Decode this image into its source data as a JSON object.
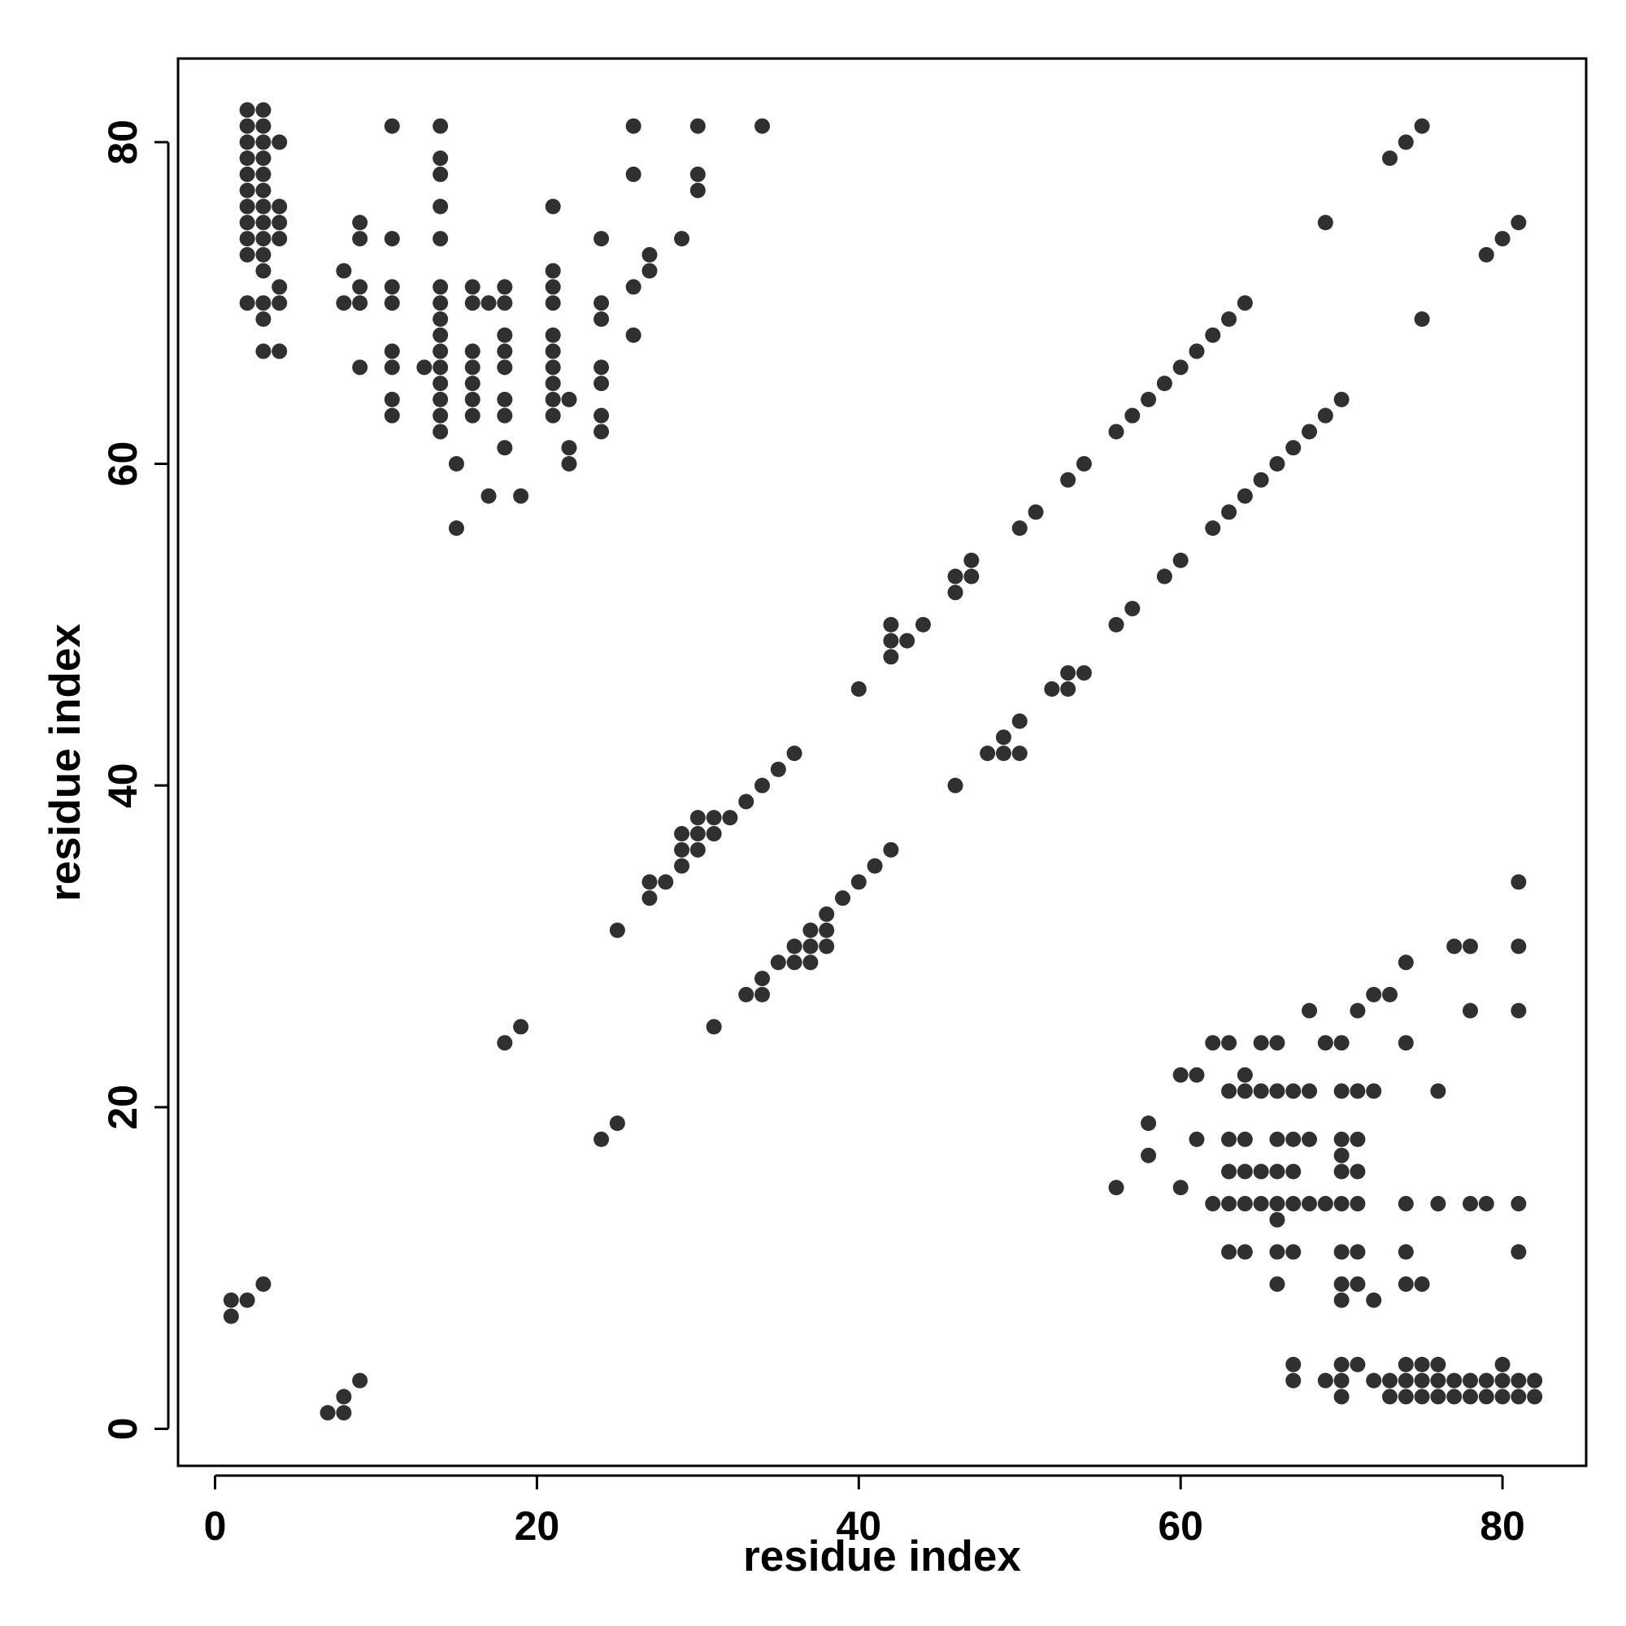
{
  "chart_data": {
    "type": "scatter",
    "title": "",
    "xlabel": "residue index",
    "ylabel": "residue index",
    "xlim": [
      -2.3,
      85.2
    ],
    "ylim": [
      -2.3,
      85.2
    ],
    "xticks": [
      0,
      20,
      40,
      60,
      80
    ],
    "yticks": [
      0,
      20,
      40,
      60,
      80
    ],
    "grid": false,
    "legend": "none",
    "point_color": "#1a1a1a",
    "series": [
      {
        "points": [
          [
            2,
            82
          ],
          [
            3,
            82
          ],
          [
            2,
            81
          ],
          [
            3,
            81
          ],
          [
            2,
            80
          ],
          [
            3,
            80
          ],
          [
            4,
            80
          ],
          [
            2,
            79
          ],
          [
            3,
            79
          ],
          [
            2,
            78
          ],
          [
            3,
            78
          ],
          [
            2,
            77
          ],
          [
            3,
            77
          ],
          [
            2,
            76
          ],
          [
            3,
            76
          ],
          [
            4,
            76
          ],
          [
            2,
            75
          ],
          [
            3,
            75
          ],
          [
            4,
            75
          ],
          [
            2,
            74
          ],
          [
            3,
            74
          ],
          [
            4,
            74
          ],
          [
            2,
            73
          ],
          [
            3,
            73
          ],
          [
            3,
            72
          ],
          [
            4,
            71
          ],
          [
            2,
            70
          ],
          [
            3,
            70
          ],
          [
            4,
            70
          ],
          [
            3,
            69
          ],
          [
            3,
            67
          ],
          [
            4,
            67
          ],
          [
            11,
            81
          ],
          [
            14,
            81
          ],
          [
            26,
            81
          ],
          [
            30,
            81
          ],
          [
            34,
            81
          ],
          [
            14,
            79
          ],
          [
            14,
            78
          ],
          [
            26,
            78
          ],
          [
            30,
            78
          ],
          [
            30,
            77
          ],
          [
            14,
            76
          ],
          [
            21,
            76
          ],
          [
            9,
            75
          ],
          [
            9,
            74
          ],
          [
            11,
            74
          ],
          [
            14,
            74
          ],
          [
            24,
            74
          ],
          [
            29,
            74
          ],
          [
            27,
            73
          ],
          [
            8,
            72
          ],
          [
            21,
            72
          ],
          [
            27,
            72
          ],
          [
            9,
            71
          ],
          [
            11,
            71
          ],
          [
            14,
            71
          ],
          [
            16,
            71
          ],
          [
            18,
            71
          ],
          [
            21,
            71
          ],
          [
            26,
            71
          ],
          [
            8,
            70
          ],
          [
            9,
            70
          ],
          [
            11,
            70
          ],
          [
            14,
            70
          ],
          [
            16,
            70
          ],
          [
            17,
            70
          ],
          [
            18,
            70
          ],
          [
            21,
            70
          ],
          [
            24,
            70
          ],
          [
            14,
            69
          ],
          [
            24,
            69
          ],
          [
            14,
            68
          ],
          [
            18,
            68
          ],
          [
            21,
            68
          ],
          [
            26,
            68
          ],
          [
            11,
            67
          ],
          [
            14,
            67
          ],
          [
            16,
            67
          ],
          [
            18,
            67
          ],
          [
            21,
            67
          ],
          [
            9,
            66
          ],
          [
            11,
            66
          ],
          [
            13,
            66
          ],
          [
            14,
            66
          ],
          [
            16,
            66
          ],
          [
            18,
            66
          ],
          [
            21,
            66
          ],
          [
            24,
            66
          ],
          [
            14,
            65
          ],
          [
            16,
            65
          ],
          [
            21,
            65
          ],
          [
            24,
            65
          ],
          [
            11,
            64
          ],
          [
            14,
            64
          ],
          [
            16,
            64
          ],
          [
            18,
            64
          ],
          [
            21,
            64
          ],
          [
            22,
            64
          ],
          [
            11,
            63
          ],
          [
            14,
            63
          ],
          [
            16,
            63
          ],
          [
            18,
            63
          ],
          [
            21,
            63
          ],
          [
            24,
            63
          ],
          [
            14,
            62
          ],
          [
            24,
            62
          ],
          [
            18,
            61
          ],
          [
            22,
            61
          ],
          [
            15,
            60
          ],
          [
            22,
            60
          ],
          [
            17,
            58
          ],
          [
            19,
            58
          ],
          [
            15,
            56
          ],
          [
            1,
            8
          ],
          [
            2,
            8
          ],
          [
            1,
            7
          ],
          [
            3,
            9
          ],
          [
            7,
            1
          ],
          [
            8,
            1
          ],
          [
            8,
            2
          ],
          [
            9,
            3
          ],
          [
            18,
            24
          ],
          [
            19,
            25
          ],
          [
            24,
            18
          ],
          [
            25,
            19
          ],
          [
            25,
            31
          ],
          [
            31,
            25
          ],
          [
            27,
            34
          ],
          [
            27,
            33
          ],
          [
            28,
            34
          ],
          [
            29,
            37
          ],
          [
            29,
            36
          ],
          [
            29,
            35
          ],
          [
            30,
            38
          ],
          [
            30,
            37
          ],
          [
            30,
            36
          ],
          [
            31,
            38
          ],
          [
            31,
            37
          ],
          [
            32,
            38
          ],
          [
            33,
            39
          ],
          [
            34,
            40
          ],
          [
            35,
            41
          ],
          [
            36,
            42
          ],
          [
            33,
            27
          ],
          [
            34,
            28
          ],
          [
            34,
            27
          ],
          [
            35,
            29
          ],
          [
            36,
            30
          ],
          [
            36,
            29
          ],
          [
            37,
            31
          ],
          [
            37,
            30
          ],
          [
            37,
            29
          ],
          [
            38,
            32
          ],
          [
            38,
            31
          ],
          [
            38,
            30
          ],
          [
            39,
            33
          ],
          [
            40,
            34
          ],
          [
            41,
            35
          ],
          [
            42,
            36
          ],
          [
            40,
            46
          ],
          [
            42,
            50
          ],
          [
            42,
            49
          ],
          [
            42,
            48
          ],
          [
            43,
            49
          ],
          [
            44,
            50
          ],
          [
            46,
            53
          ],
          [
            46,
            52
          ],
          [
            47,
            54
          ],
          [
            47,
            53
          ],
          [
            50,
            56
          ],
          [
            51,
            57
          ],
          [
            53,
            59
          ],
          [
            54,
            60
          ],
          [
            56,
            62
          ],
          [
            57,
            63
          ],
          [
            58,
            64
          ],
          [
            59,
            65
          ],
          [
            60,
            66
          ],
          [
            61,
            67
          ],
          [
            62,
            68
          ],
          [
            63,
            69
          ],
          [
            64,
            70
          ],
          [
            46,
            40
          ],
          [
            48,
            42
          ],
          [
            49,
            43
          ],
          [
            49,
            42
          ],
          [
            50,
            44
          ],
          [
            50,
            42
          ],
          [
            52,
            46
          ],
          [
            53,
            47
          ],
          [
            53,
            46
          ],
          [
            54,
            47
          ],
          [
            56,
            50
          ],
          [
            57,
            51
          ],
          [
            59,
            53
          ],
          [
            60,
            54
          ],
          [
            62,
            56
          ],
          [
            63,
            57
          ],
          [
            64,
            58
          ],
          [
            65,
            59
          ],
          [
            66,
            60
          ],
          [
            67,
            61
          ],
          [
            68,
            62
          ],
          [
            69,
            63
          ],
          [
            70,
            64
          ],
          [
            69,
            75
          ],
          [
            73,
            79
          ],
          [
            74,
            80
          ],
          [
            75,
            81
          ],
          [
            75,
            69
          ],
          [
            79,
            73
          ],
          [
            80,
            74
          ],
          [
            81,
            75
          ],
          [
            56,
            15
          ],
          [
            58,
            19
          ],
          [
            58,
            17
          ],
          [
            60,
            22
          ],
          [
            60,
            15
          ],
          [
            61,
            22
          ],
          [
            61,
            18
          ],
          [
            62,
            24
          ],
          [
            62,
            14
          ],
          [
            63,
            24
          ],
          [
            63,
            21
          ],
          [
            63,
            18
          ],
          [
            63,
            16
          ],
          [
            63,
            14
          ],
          [
            63,
            11
          ],
          [
            64,
            22
          ],
          [
            64,
            21
          ],
          [
            64,
            18
          ],
          [
            64,
            16
          ],
          [
            64,
            14
          ],
          [
            64,
            11
          ],
          [
            65,
            24
          ],
          [
            65,
            21
          ],
          [
            65,
            16
          ],
          [
            65,
            14
          ],
          [
            66,
            24
          ],
          [
            66,
            21
          ],
          [
            66,
            18
          ],
          [
            66,
            16
          ],
          [
            66,
            14
          ],
          [
            66,
            13
          ],
          [
            66,
            11
          ],
          [
            66,
            9
          ],
          [
            67,
            21
          ],
          [
            67,
            18
          ],
          [
            67,
            16
          ],
          [
            67,
            14
          ],
          [
            67,
            11
          ],
          [
            67,
            4
          ],
          [
            67,
            3
          ],
          [
            68,
            26
          ],
          [
            68,
            21
          ],
          [
            68,
            18
          ],
          [
            68,
            14
          ],
          [
            69,
            24
          ],
          [
            69,
            14
          ],
          [
            69,
            3
          ],
          [
            70,
            24
          ],
          [
            70,
            21
          ],
          [
            70,
            18
          ],
          [
            70,
            17
          ],
          [
            70,
            16
          ],
          [
            70,
            14
          ],
          [
            70,
            11
          ],
          [
            70,
            9
          ],
          [
            70,
            8
          ],
          [
            70,
            4
          ],
          [
            70,
            3
          ],
          [
            70,
            2
          ],
          [
            71,
            26
          ],
          [
            71,
            21
          ],
          [
            71,
            18
          ],
          [
            71,
            16
          ],
          [
            71,
            14
          ],
          [
            71,
            11
          ],
          [
            71,
            9
          ],
          [
            71,
            4
          ],
          [
            72,
            27
          ],
          [
            72,
            21
          ],
          [
            72,
            8
          ],
          [
            72,
            3
          ],
          [
            73,
            27
          ],
          [
            73,
            3
          ],
          [
            73,
            2
          ],
          [
            74,
            29
          ],
          [
            74,
            24
          ],
          [
            74,
            14
          ],
          [
            74,
            11
          ],
          [
            74,
            9
          ],
          [
            74,
            4
          ],
          [
            74,
            3
          ],
          [
            74,
            2
          ],
          [
            75,
            9
          ],
          [
            75,
            4
          ],
          [
            75,
            3
          ],
          [
            75,
            2
          ],
          [
            76,
            21
          ],
          [
            76,
            14
          ],
          [
            76,
            4
          ],
          [
            76,
            3
          ],
          [
            76,
            2
          ],
          [
            77,
            30
          ],
          [
            77,
            3
          ],
          [
            77,
            2
          ],
          [
            78,
            30
          ],
          [
            78,
            26
          ],
          [
            78,
            14
          ],
          [
            78,
            3
          ],
          [
            78,
            2
          ],
          [
            79,
            14
          ],
          [
            79,
            3
          ],
          [
            79,
            2
          ],
          [
            80,
            4
          ],
          [
            80,
            3
          ],
          [
            80,
            2
          ],
          [
            81,
            34
          ],
          [
            81,
            30
          ],
          [
            81,
            26
          ],
          [
            81,
            14
          ],
          [
            81,
            11
          ],
          [
            81,
            3
          ],
          [
            81,
            2
          ],
          [
            82,
            3
          ],
          [
            82,
            2
          ]
        ]
      }
    ]
  }
}
